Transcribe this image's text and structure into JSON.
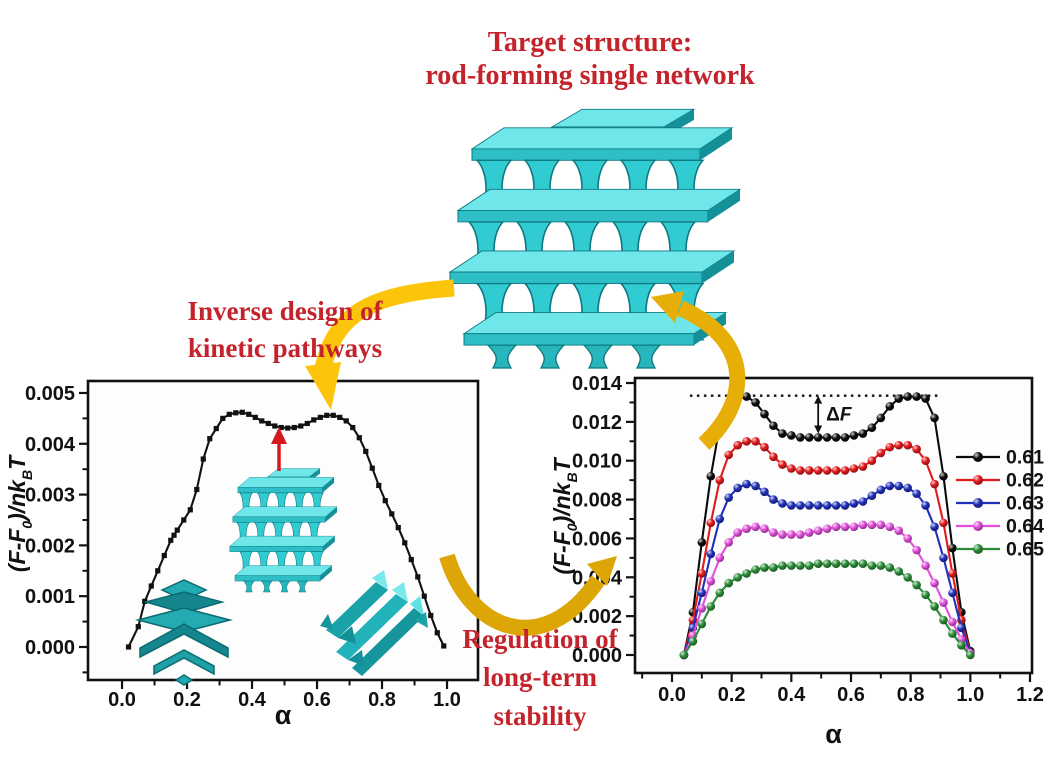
{
  "title": {
    "line1": "Target structure:",
    "line2": "rod-forming single network"
  },
  "annotations": {
    "inverse_design": {
      "line1": "Inverse design of",
      "line2": "kinetic pathways"
    },
    "regulation": {
      "line1": "Regulation of",
      "line2": "long-term",
      "line3": "stability"
    }
  },
  "colors": {
    "accent_text": "#c4232b",
    "arrow_gold": "#f4bb08",
    "structure_teal": "#2ebfc6",
    "red_arrow": "#d31920"
  },
  "figures": {
    "central_structure": "rod-forming-single-network-3d",
    "inset_network": "network-structure-3d",
    "inset_chevron": "layered-chevron-structure-3d",
    "inset_rods": "tilted-rod-structure-3d"
  },
  "chart_data": [
    {
      "name": "kinetic-pathway-free-energy",
      "type": "line",
      "xlabel": "α",
      "ylabel_parts": [
        {
          "t": "(F-F",
          "sub": false
        },
        {
          "t": "0",
          "sub": true
        },
        {
          "t": ")/nk",
          "sub": false
        },
        {
          "t": "B",
          "sub": true
        },
        {
          "t": "T",
          "sub": false
        }
      ],
      "xlim": [
        -0.1047,
        1.0953
      ],
      "ylim": [
        -0.00065,
        0.005236
      ],
      "grid": false,
      "xticks": {
        "values": [
          0.0,
          0.2,
          0.4,
          0.6,
          0.8,
          1.0
        ],
        "labels": [
          "0.0",
          "0.2",
          "0.4",
          "0.6",
          "0.8",
          "1.0"
        ]
      },
      "yticks": {
        "values": [
          0.0,
          0.001,
          0.002,
          0.003,
          0.004,
          0.005
        ],
        "labels": [
          "0.000",
          "0.001",
          "0.002",
          "0.003",
          "0.004",
          "0.005"
        ]
      },
      "series": [
        {
          "name": "free-energy-path",
          "color": "#111111",
          "marker": "square",
          "x": [
            0.02,
            0.05,
            0.07,
            0.09,
            0.11,
            0.13,
            0.15,
            0.16,
            0.17,
            0.19,
            0.21,
            0.23,
            0.25,
            0.27,
            0.29,
            0.31,
            0.33,
            0.35,
            0.37,
            0.39,
            0.41,
            0.43,
            0.45,
            0.47,
            0.49,
            0.51,
            0.53,
            0.55,
            0.57,
            0.59,
            0.61,
            0.63,
            0.65,
            0.67,
            0.69,
            0.71,
            0.73,
            0.75,
            0.77,
            0.79,
            0.81,
            0.83,
            0.85,
            0.87,
            0.89,
            0.91,
            0.93,
            0.95,
            0.97,
            0.99
          ],
          "y": [
            0.0,
            0.0004,
            0.0009,
            0.0012,
            0.0015,
            0.0018,
            0.0021,
            0.0022,
            0.0023,
            0.0025,
            0.0027,
            0.0031,
            0.0037,
            0.0041,
            0.0043,
            0.0045,
            0.00458,
            0.00461,
            0.00462,
            0.00458,
            0.00452,
            0.00445,
            0.0044,
            0.00435,
            0.00432,
            0.00431,
            0.00432,
            0.00435,
            0.0044,
            0.00447,
            0.00452,
            0.00456,
            0.00456,
            0.00452,
            0.00445,
            0.00432,
            0.00412,
            0.00385,
            0.00352,
            0.00318,
            0.00288,
            0.00262,
            0.00235,
            0.00205,
            0.00172,
            0.00138,
            0.001,
            0.00062,
            0.00028,
            2e-05
          ]
        }
      ],
      "extra": {
        "red_arrow": {
          "x": 0.485,
          "y_from": 0.00345,
          "y_to": 0.00427
        }
      }
    },
    {
      "name": "long-term-stability-free-energy",
      "type": "line",
      "xlabel": "α",
      "ylabel_parts": [
        {
          "t": "(F-F",
          "sub": false
        },
        {
          "t": "0",
          "sub": true
        },
        {
          "t": ")/nk",
          "sub": false
        },
        {
          "t": "B",
          "sub": true
        },
        {
          "t": "T",
          "sub": false
        }
      ],
      "xlim": [
        -0.124,
        1.2067
      ],
      "ylim": [
        -0.000927,
        0.014258
      ],
      "grid": false,
      "legend_position": "inside-right",
      "xticks": {
        "values": [
          0.0,
          0.2,
          0.4,
          0.6,
          0.8,
          1.0,
          1.2
        ],
        "labels": [
          "0.0",
          "0.2",
          "0.4",
          "0.6",
          "0.8",
          "1.0",
          "1.2"
        ]
      },
      "yticks": {
        "values": [
          0.0,
          0.002,
          0.004,
          0.006,
          0.008,
          0.01,
          0.012,
          0.014
        ],
        "labels": [
          "0.000",
          "0.002",
          "0.004",
          "0.006",
          "0.008",
          "0.010",
          "0.012",
          "0.014"
        ]
      },
      "shared_x": [
        0.04,
        0.07,
        0.1,
        0.13,
        0.16,
        0.19,
        0.22,
        0.25,
        0.28,
        0.31,
        0.34,
        0.37,
        0.4,
        0.43,
        0.46,
        0.49,
        0.52,
        0.55,
        0.58,
        0.61,
        0.64,
        0.67,
        0.7,
        0.73,
        0.76,
        0.79,
        0.82,
        0.85,
        0.88,
        0.91,
        0.94,
        0.97,
        1.0
      ],
      "series": [
        {
          "name": "0.61",
          "color": "#0b0b0b",
          "marker": "ball",
          "y": [
            0.0,
            0.0022,
            0.0058,
            0.0092,
            0.0118,
            0.0129,
            0.0133,
            0.0133,
            0.013,
            0.0124,
            0.0118,
            0.0114,
            0.0113,
            0.0112,
            0.0112,
            0.0112,
            0.0112,
            0.0112,
            0.0112,
            0.0113,
            0.0114,
            0.0117,
            0.0122,
            0.0128,
            0.0132,
            0.0133,
            0.0133,
            0.0132,
            0.0122,
            0.0092,
            0.0055,
            0.0022,
            0.0002
          ]
        },
        {
          "name": "0.62",
          "color": "#e2191b",
          "marker": "ball",
          "y": [
            0.0,
            0.0018,
            0.0042,
            0.0068,
            0.009,
            0.0103,
            0.0108,
            0.011,
            0.011,
            0.0107,
            0.0102,
            0.0098,
            0.0096,
            0.0095,
            0.0095,
            0.0095,
            0.0095,
            0.0095,
            0.0095,
            0.0096,
            0.0097,
            0.01,
            0.0104,
            0.0107,
            0.0108,
            0.0108,
            0.0106,
            0.01,
            0.0088,
            0.0068,
            0.0042,
            0.0018,
            0.0001
          ]
        },
        {
          "name": "0.63",
          "color": "#2030b8",
          "marker": "ball",
          "y": [
            0.0,
            0.0014,
            0.0032,
            0.0052,
            0.007,
            0.0081,
            0.0086,
            0.0088,
            0.0087,
            0.0084,
            0.008,
            0.0078,
            0.0077,
            0.0077,
            0.0077,
            0.0077,
            0.0077,
            0.0077,
            0.0077,
            0.0078,
            0.0079,
            0.0082,
            0.0085,
            0.0087,
            0.0087,
            0.0086,
            0.0083,
            0.0077,
            0.0066,
            0.005,
            0.0032,
            0.0014,
            0.0001
          ]
        },
        {
          "name": "0.64",
          "color": "#e14fdc",
          "marker": "ball",
          "y": [
            0.0,
            0.001,
            0.0024,
            0.0038,
            0.005,
            0.0058,
            0.0063,
            0.0065,
            0.0066,
            0.0065,
            0.0063,
            0.0062,
            0.0062,
            0.0062,
            0.0063,
            0.0064,
            0.0065,
            0.0066,
            0.0066,
            0.0066,
            0.0067,
            0.0067,
            0.0067,
            0.0066,
            0.0064,
            0.006,
            0.0054,
            0.0046,
            0.0037,
            0.0027,
            0.0017,
            0.0008,
            0.0001
          ]
        },
        {
          "name": "0.65",
          "color": "#2b8d38",
          "marker": "ball",
          "y": [
            0.0,
            0.0007,
            0.0016,
            0.0025,
            0.0032,
            0.0037,
            0.004,
            0.0042,
            0.0044,
            0.0045,
            0.0045,
            0.0046,
            0.0046,
            0.0046,
            0.0046,
            0.0047,
            0.0047,
            0.0047,
            0.0047,
            0.0047,
            0.0047,
            0.0046,
            0.0046,
            0.0045,
            0.0043,
            0.004,
            0.0036,
            0.0031,
            0.0025,
            0.0018,
            0.0011,
            0.0005,
            0.0
          ]
        }
      ],
      "annotations": {
        "dashed_line_y": 0.01335,
        "dashed_x_range": [
          0.06,
          0.89
        ],
        "delta_label_parts": [
          {
            "t": "Δ",
            "italic": false
          },
          {
            "t": "F",
            "italic": true
          }
        ],
        "delta_arrow_x": 0.49,
        "delta_from": 0.0114,
        "delta_to": 0.01335
      }
    }
  ]
}
